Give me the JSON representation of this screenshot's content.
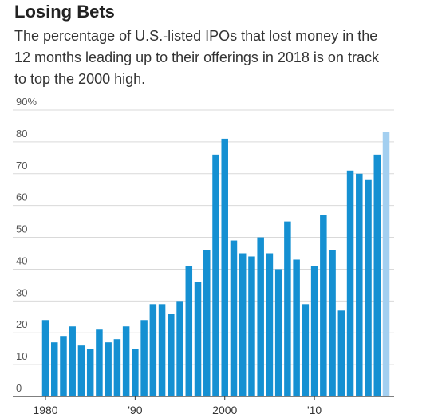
{
  "chart_data": {
    "type": "bar",
    "title": "Losing Bets",
    "subtitle": "The percentage of U.S.-listed IPOs that lost money in the 12 months leading up to their offerings in 2018 is on track to top the 2000 high.",
    "categories": [
      "1980",
      null,
      null,
      null,
      null,
      null,
      null,
      null,
      null,
      null,
      "'90",
      null,
      null,
      null,
      null,
      null,
      null,
      null,
      null,
      null,
      "2000",
      null,
      null,
      null,
      null,
      null,
      null,
      null,
      null,
      null,
      "'10",
      null,
      null,
      null,
      null,
      null,
      null,
      null,
      null
    ],
    "values": [
      24,
      17,
      19,
      22,
      16,
      15,
      21,
      17,
      18,
      22,
      15,
      24,
      29,
      29,
      26,
      30,
      41,
      36,
      46,
      76,
      81,
      49,
      45,
      44,
      50,
      45,
      40,
      55,
      43,
      29,
      41,
      57,
      46,
      27,
      71,
      70,
      68,
      76,
      83
    ],
    "colors": [
      "#1590d2",
      "#1590d2",
      "#1590d2",
      "#1590d2",
      "#1590d2",
      "#1590d2",
      "#1590d2",
      "#1590d2",
      "#1590d2",
      "#1590d2",
      "#1590d2",
      "#1590d2",
      "#1590d2",
      "#1590d2",
      "#1590d2",
      "#1590d2",
      "#1590d2",
      "#1590d2",
      "#1590d2",
      "#1590d2",
      "#1590d2",
      "#1590d2",
      "#1590d2",
      "#1590d2",
      "#1590d2",
      "#1590d2",
      "#1590d2",
      "#1590d2",
      "#1590d2",
      "#1590d2",
      "#1590d2",
      "#1590d2",
      "#1590d2",
      "#1590d2",
      "#1590d2",
      "#1590d2",
      "#1590d2",
      "#1590d2",
      "#a3cff0"
    ],
    "ylim": [
      0,
      90
    ],
    "yticks": [
      0,
      10,
      20,
      30,
      40,
      50,
      60,
      70,
      80,
      {
        "value": 90,
        "label": "90%"
      }
    ],
    "grid": true
  }
}
